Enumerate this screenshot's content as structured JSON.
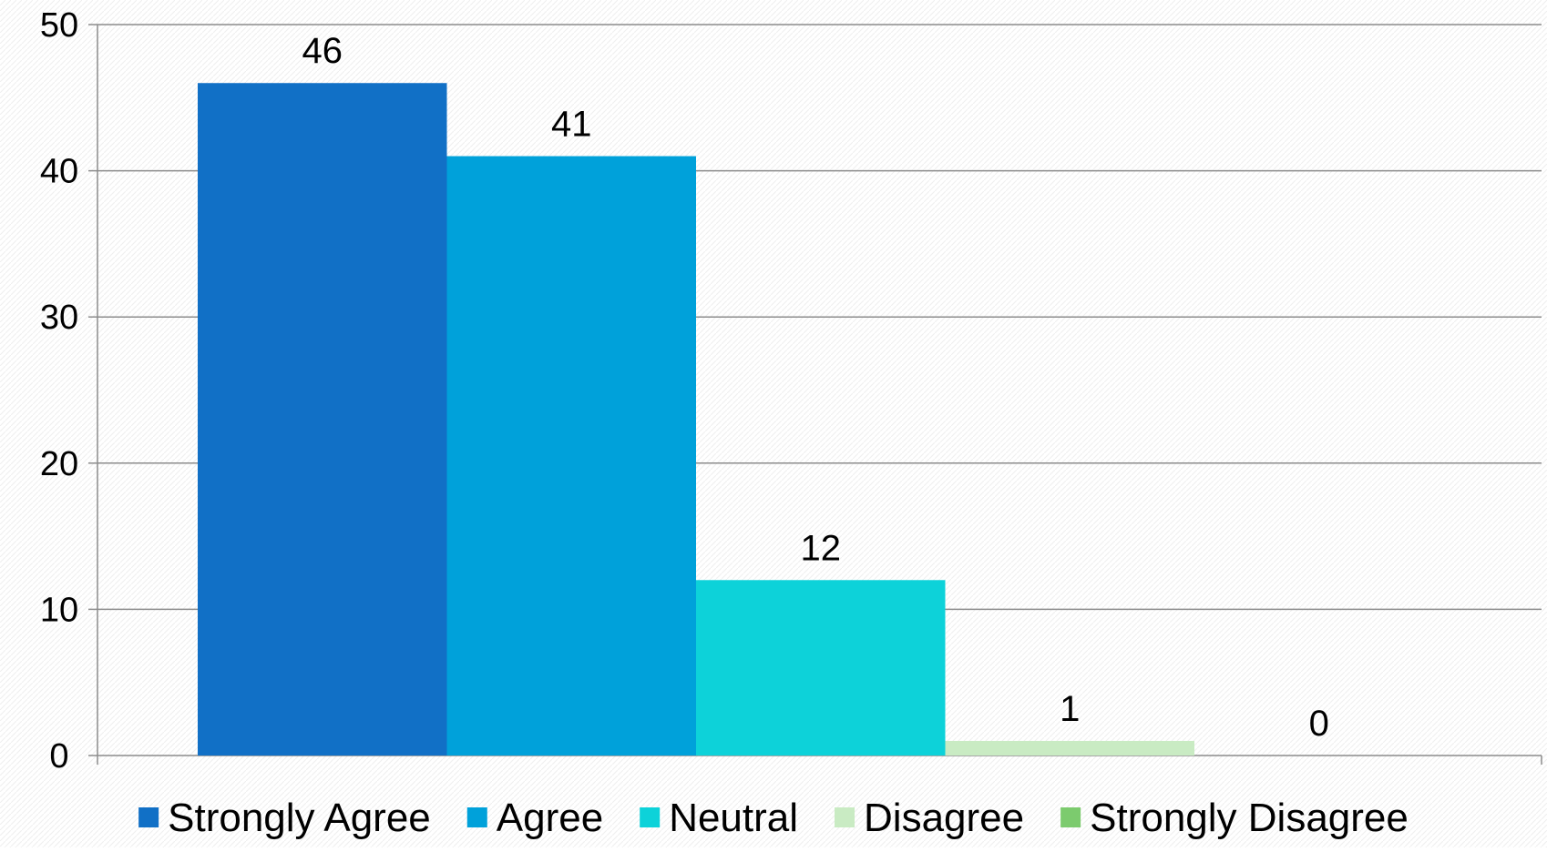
{
  "chart_data": {
    "type": "bar",
    "categories": [
      "Strongly Agree",
      "Agree",
      "Neutral",
      "Disagree",
      "Strongly Disagree"
    ],
    "values": [
      46,
      41,
      12,
      1,
      0
    ],
    "data_labels": [
      "46",
      "41",
      "12",
      "1",
      "0"
    ],
    "colors": [
      "#1170C6",
      "#00A1DA",
      "#0DD2D9",
      "#C9EBC3",
      "#7CCB6E"
    ],
    "ylim": [
      0,
      50
    ],
    "y_ticks": [
      0,
      10,
      20,
      30,
      40,
      50
    ],
    "y_tick_labels": [
      "0",
      "10",
      "20",
      "30",
      "40",
      "50"
    ],
    "title": "",
    "xlabel": "",
    "ylabel": "",
    "grid": true,
    "legend_position": "bottom",
    "legend": {
      "items": [
        {
          "label": "Strongly Agree",
          "color": "#1170C6"
        },
        {
          "label": "Agree",
          "color": "#00A1DA"
        },
        {
          "label": "Neutral",
          "color": "#0DD2D9"
        },
        {
          "label": "Disagree",
          "color": "#C9EBC3"
        },
        {
          "label": "Strongly Disagree",
          "color": "#7CCB6E"
        }
      ]
    }
  }
}
